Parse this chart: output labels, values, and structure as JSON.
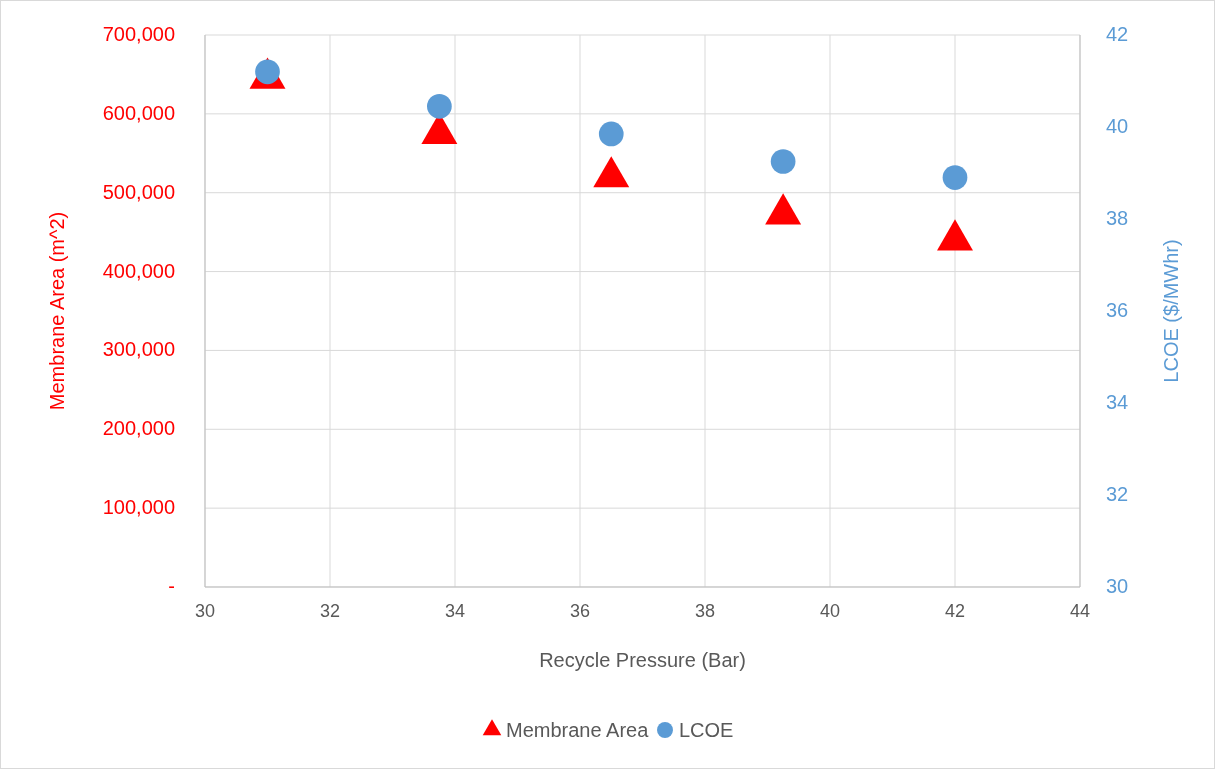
{
  "chart_data": {
    "type": "scatter",
    "xlabel": "Recycle Pressure (Bar)",
    "ylabel": "Membrane Area (m^2)",
    "y2label": "LCOE ($/MWhr)",
    "xlim": [
      30,
      44
    ],
    "xticks": [
      30,
      32,
      34,
      36,
      38,
      40,
      42,
      44
    ],
    "ylim": [
      0,
      700000
    ],
    "yticks": [
      {
        "value": 0,
        "label": "-"
      },
      {
        "value": 100000,
        "label": "100,000"
      },
      {
        "value": 200000,
        "label": "200,000"
      },
      {
        "value": 300000,
        "label": "300,000"
      },
      {
        "value": 400000,
        "label": "400,000"
      },
      {
        "value": 500000,
        "label": "500,000"
      },
      {
        "value": 600000,
        "label": "600,000"
      },
      {
        "value": 700000,
        "label": "700,000"
      }
    ],
    "y2lim": [
      30,
      42
    ],
    "y2ticks": [
      30,
      32,
      34,
      36,
      38,
      40,
      42
    ],
    "grid": true,
    "legend": "bottom",
    "series": [
      {
        "name": "Membrane Area",
        "color": "#ff0000",
        "marker": "triangle",
        "x": [
          31,
          33.75,
          36.5,
          39.25,
          42
        ],
        "values": [
          645000,
          575000,
          520000,
          473000,
          440000
        ]
      },
      {
        "name": "LCOE",
        "color": "#5b9bd5",
        "marker": "circle",
        "axis": "y2",
        "x": [
          31,
          33.75,
          36.5,
          39.25,
          42
        ],
        "values": [
          41.2,
          40.45,
          39.85,
          39.25,
          38.9
        ]
      }
    ]
  }
}
